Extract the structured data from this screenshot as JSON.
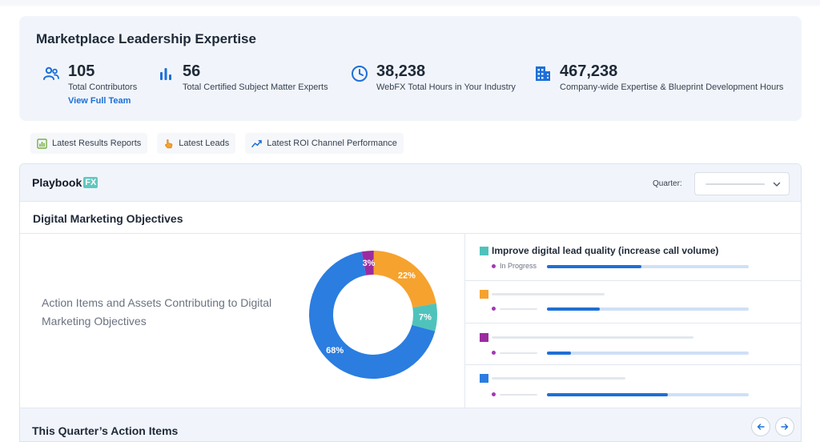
{
  "expertise": {
    "title": "Marketplace Leadership Expertise",
    "stats": [
      {
        "icon": "users-icon",
        "value": "105",
        "label": "Total Contributors",
        "link": "View Full Team"
      },
      {
        "icon": "bar-chart-icon",
        "value": "56",
        "label": "Total Certified Subject Matter Experts"
      },
      {
        "icon": "clock-icon",
        "value": "38,238",
        "label": "WebFX Total Hours in Your Industry"
      },
      {
        "icon": "building-icon",
        "value": "467,238",
        "label": "Company-wide Expertise & Blueprint Development Hours"
      }
    ],
    "accent": "#1d6fd8"
  },
  "tabs": [
    {
      "icon": "report-icon",
      "label": "Latest Results Reports"
    },
    {
      "icon": "hand-pointer-icon",
      "label": "Latest Leads"
    },
    {
      "icon": "trend-line-icon",
      "label": "Latest ROI Channel Performance"
    }
  ],
  "playbook": {
    "logo_text": "Playbook",
    "logo_badge": "FX",
    "quarter_label": "Quarter:",
    "objectives_title": "Digital Marketing Objectives",
    "left_text": "Action Items and Assets Contributing to Digital Marketing Objectives",
    "objectives": [
      {
        "title": "Improve digital lead quality (increase call volume)",
        "status": "In Progress",
        "color": "#4fc3bb",
        "progress": 0.47
      },
      {
        "title": "",
        "status": "",
        "color": "#f6a22e",
        "progress": 0.26
      },
      {
        "title": "",
        "status": "",
        "color": "#9c2b9f",
        "progress": 0.12
      },
      {
        "title": "",
        "status": "",
        "color": "#2b7de0",
        "progress": 0.6
      }
    ],
    "action_items_title": "This Quarter’s Action Items"
  },
  "chart_data": {
    "type": "pie",
    "donut": true,
    "slices": [
      {
        "label": "22%",
        "value": 22,
        "color": "#f6a22e"
      },
      {
        "label": "7%",
        "value": 7,
        "color": "#4fc3bb"
      },
      {
        "label": "68%",
        "value": 68,
        "color": "#2b7de0"
      },
      {
        "label": "3%",
        "value": 3,
        "color": "#9c2b9f"
      }
    ]
  }
}
